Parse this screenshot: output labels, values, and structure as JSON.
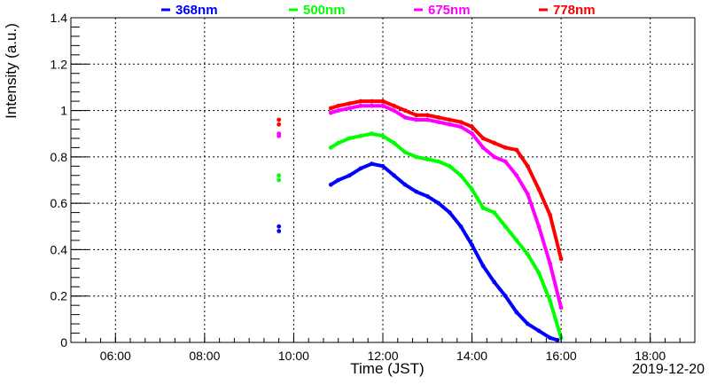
{
  "chart_data": {
    "type": "scatter",
    "xlabel": "Time (JST)",
    "ylabel": "Intensity (a.u.)",
    "date_label": "2019-12-20",
    "xlim": [
      "05:00",
      "19:00"
    ],
    "ylim": [
      0,
      1.4
    ],
    "x_ticks": [
      "06:00",
      "08:00",
      "10:00",
      "12:00",
      "14:00",
      "16:00",
      "18:00"
    ],
    "y_ticks": [
      "0",
      "0.2",
      "0.4",
      "0.6",
      "0.8",
      "1",
      "1.2",
      "1.4"
    ],
    "grid": true,
    "legend_position": "top",
    "series": [
      {
        "name": "368nm",
        "color": "#0000ff",
        "points": [
          [
            "09:40",
            0.48
          ],
          [
            "09:40",
            0.5
          ],
          [
            "10:50",
            0.68
          ],
          [
            "11:00",
            0.7
          ],
          [
            "11:15",
            0.72
          ],
          [
            "11:30",
            0.75
          ],
          [
            "11:45",
            0.77
          ],
          [
            "12:00",
            0.76
          ],
          [
            "12:15",
            0.72
          ],
          [
            "12:30",
            0.68
          ],
          [
            "12:45",
            0.65
          ],
          [
            "13:00",
            0.63
          ],
          [
            "13:15",
            0.6
          ],
          [
            "13:30",
            0.56
          ],
          [
            "13:45",
            0.5
          ],
          [
            "14:00",
            0.42
          ],
          [
            "14:15",
            0.33
          ],
          [
            "14:30",
            0.26
          ],
          [
            "14:45",
            0.2
          ],
          [
            "15:00",
            0.13
          ],
          [
            "15:15",
            0.08
          ],
          [
            "15:30",
            0.05
          ],
          [
            "15:45",
            0.02
          ],
          [
            "15:55",
            0.01
          ]
        ]
      },
      {
        "name": "500nm",
        "color": "#00ff00",
        "points": [
          [
            "09:40",
            0.7
          ],
          [
            "09:40",
            0.72
          ],
          [
            "10:50",
            0.84
          ],
          [
            "11:00",
            0.86
          ],
          [
            "11:15",
            0.88
          ],
          [
            "11:30",
            0.89
          ],
          [
            "11:45",
            0.9
          ],
          [
            "12:00",
            0.89
          ],
          [
            "12:15",
            0.86
          ],
          [
            "12:30",
            0.82
          ],
          [
            "12:45",
            0.8
          ],
          [
            "13:00",
            0.79
          ],
          [
            "13:15",
            0.78
          ],
          [
            "13:30",
            0.76
          ],
          [
            "13:45",
            0.72
          ],
          [
            "14:00",
            0.66
          ],
          [
            "14:15",
            0.58
          ],
          [
            "14:30",
            0.56
          ],
          [
            "14:45",
            0.5
          ],
          [
            "15:00",
            0.44
          ],
          [
            "15:15",
            0.38
          ],
          [
            "15:30",
            0.3
          ],
          [
            "15:45",
            0.18
          ],
          [
            "16:00",
            0.02
          ]
        ]
      },
      {
        "name": "675nm",
        "color": "#ff00ff",
        "points": [
          [
            "09:40",
            0.89
          ],
          [
            "09:40",
            0.9
          ],
          [
            "10:50",
            0.99
          ],
          [
            "11:00",
            1.0
          ],
          [
            "11:15",
            1.01
          ],
          [
            "11:30",
            1.02
          ],
          [
            "11:45",
            1.02
          ],
          [
            "12:00",
            1.02
          ],
          [
            "12:15",
            1.0
          ],
          [
            "12:30",
            0.97
          ],
          [
            "12:45",
            0.96
          ],
          [
            "13:00",
            0.96
          ],
          [
            "13:15",
            0.95
          ],
          [
            "13:30",
            0.94
          ],
          [
            "13:45",
            0.93
          ],
          [
            "14:00",
            0.9
          ],
          [
            "14:15",
            0.84
          ],
          [
            "14:30",
            0.8
          ],
          [
            "14:45",
            0.78
          ],
          [
            "15:00",
            0.72
          ],
          [
            "15:15",
            0.64
          ],
          [
            "15:30",
            0.5
          ],
          [
            "15:45",
            0.34
          ],
          [
            "16:00",
            0.15
          ]
        ]
      },
      {
        "name": "778nm",
        "color": "#ff0000",
        "points": [
          [
            "09:40",
            0.94
          ],
          [
            "09:40",
            0.96
          ],
          [
            "10:50",
            1.01
          ],
          [
            "11:00",
            1.02
          ],
          [
            "11:15",
            1.03
          ],
          [
            "11:30",
            1.04
          ],
          [
            "11:45",
            1.04
          ],
          [
            "12:00",
            1.04
          ],
          [
            "12:15",
            1.02
          ],
          [
            "12:30",
            1.0
          ],
          [
            "12:45",
            0.98
          ],
          [
            "13:00",
            0.98
          ],
          [
            "13:15",
            0.97
          ],
          [
            "13:30",
            0.96
          ],
          [
            "13:45",
            0.95
          ],
          [
            "14:00",
            0.93
          ],
          [
            "14:15",
            0.88
          ],
          [
            "14:30",
            0.86
          ],
          [
            "14:45",
            0.84
          ],
          [
            "15:00",
            0.83
          ],
          [
            "15:15",
            0.76
          ],
          [
            "15:30",
            0.66
          ],
          [
            "15:45",
            0.55
          ],
          [
            "16:00",
            0.36
          ]
        ]
      }
    ]
  }
}
